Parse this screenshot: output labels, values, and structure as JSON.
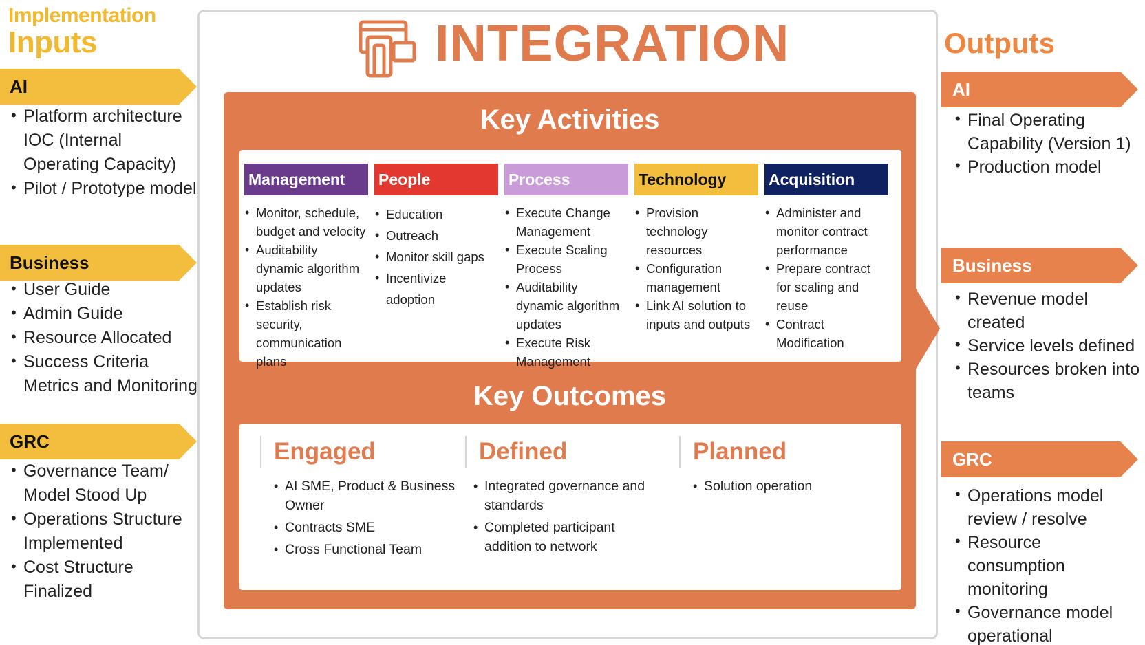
{
  "inputs": {
    "heading_small": "Implementation",
    "heading_big": "Inputs",
    "sections": [
      {
        "title": "AI",
        "items": [
          "Platform architecture IOC (Internal Operating Capacity)",
          "Pilot / Prototype model"
        ]
      },
      {
        "title": "Business",
        "items": [
          "User Guide",
          "Admin Guide",
          "Resource Allocated",
          "Success Criteria Metrics and Monitoring"
        ]
      },
      {
        "title": "GRC",
        "items": [
          "Governance Team/ Model Stood Up",
          "Operations Structure Implemented",
          "Cost Structure Finalized"
        ]
      }
    ]
  },
  "integration": {
    "title": "INTEGRATION",
    "logo_icon": "devices-icon",
    "key_activities_title": "Key Activities",
    "activities": [
      {
        "header": "Management",
        "color": "#6a3a8c",
        "text_color": "#ffffff",
        "items": [
          "Monitor, schedule, budget and velocity",
          "Auditability dynamic algorithm updates",
          "Establish risk security, communication plans"
        ]
      },
      {
        "header": "People",
        "color": "#e3382f",
        "text_color": "#ffffff",
        "items": [
          "Education",
          "Outreach",
          "Monitor skill gaps",
          "Incentivize adoption"
        ]
      },
      {
        "header": "Process",
        "color": "#c99bd8",
        "text_color": "#ffffff",
        "items": [
          "Execute Change Management",
          "Execute Scaling Process",
          "Auditability dynamic algorithm updates",
          "Execute Risk Management"
        ]
      },
      {
        "header": "Technology",
        "color": "#f3bd3e",
        "text_color": "#111111",
        "items": [
          "Provision technology resources",
          "Configuration management",
          "Link AI solution to inputs and outputs"
        ]
      },
      {
        "header": "Acquisition",
        "color": "#0f2160",
        "text_color": "#ffffff",
        "items": [
          "Administer and monitor contract performance",
          "Prepare contract for scaling and reuse",
          "Contract Modification"
        ]
      }
    ],
    "key_outcomes_title": "Key Outcomes",
    "outcomes": [
      {
        "title": "Engaged",
        "items": [
          "AI SME, Product & Business Owner",
          "Contracts SME",
          "Cross Functional Team"
        ]
      },
      {
        "title": "Defined",
        "items": [
          "Integrated governance and standards",
          "Completed participant addition to network"
        ]
      },
      {
        "title": "Planned",
        "items": [
          "Solution operation"
        ]
      }
    ]
  },
  "outputs": {
    "heading": "Outputs",
    "sections": [
      {
        "title": "AI",
        "items": [
          "Final Operating Capability (Version 1)",
          "Production model"
        ]
      },
      {
        "title": "Business",
        "items": [
          "Revenue model created",
          "Service levels defined",
          "Resources broken into teams"
        ]
      },
      {
        "title": "GRC",
        "items": [
          "Operations model review / resolve",
          "Resource consumption monitoring",
          "Governance model operational"
        ]
      }
    ]
  }
}
